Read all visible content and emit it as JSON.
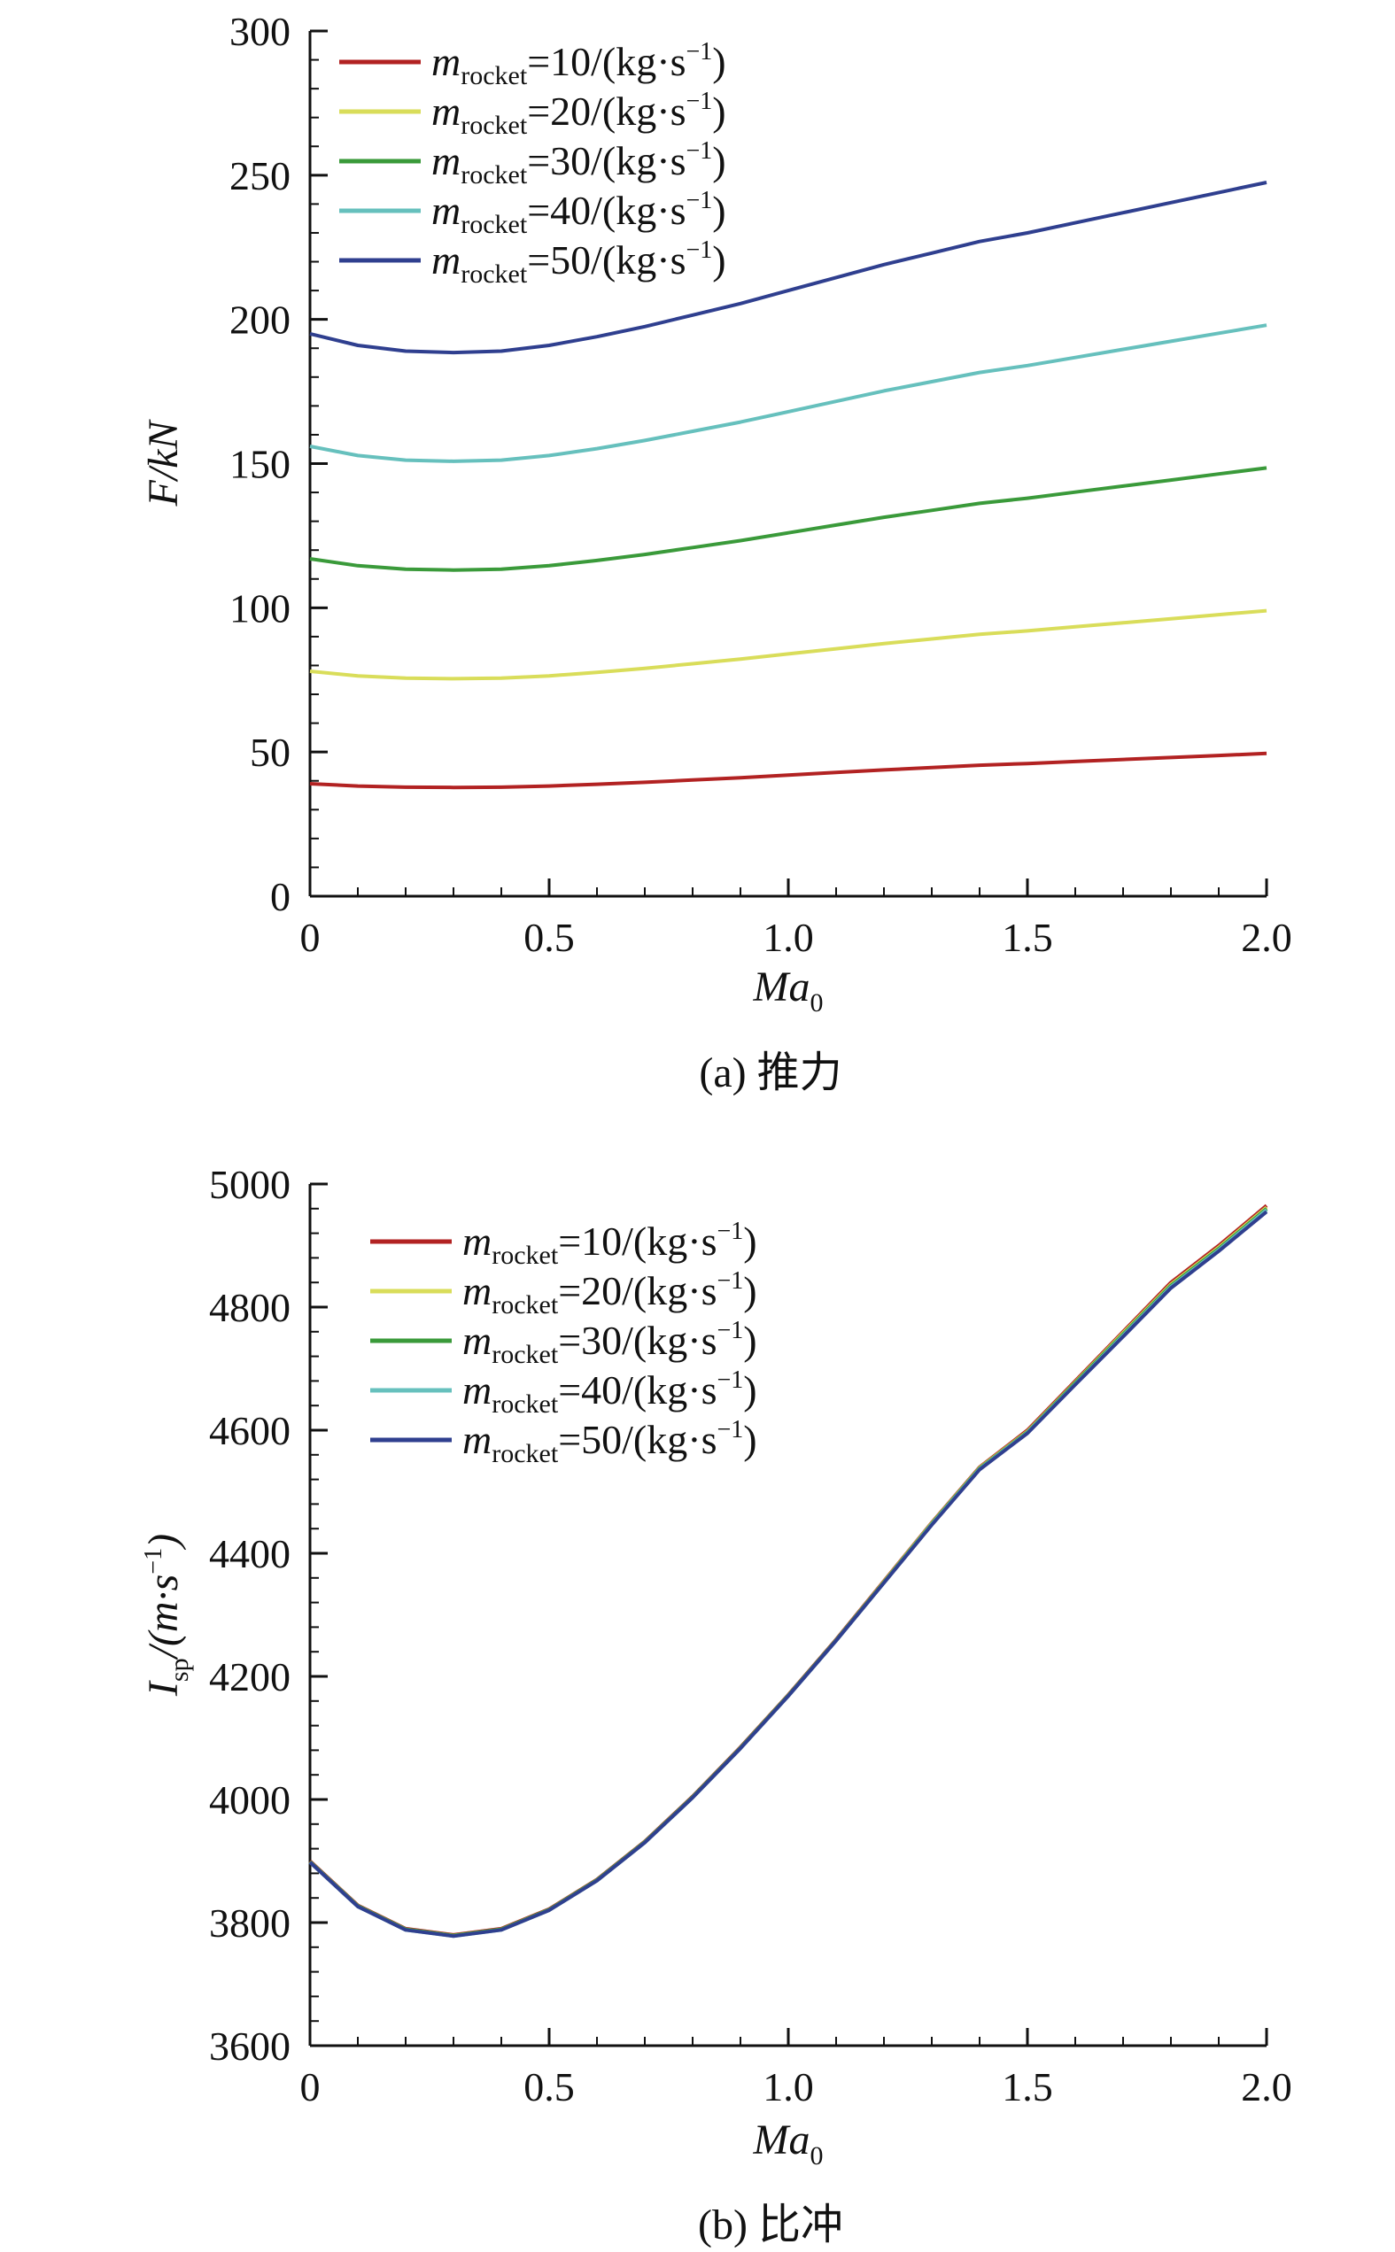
{
  "chart_data": [
    {
      "type": "line",
      "caption": "(a) 推力",
      "xlabel": "Ma",
      "xlabel_sub": "0",
      "ylabel": "F/kN",
      "xlim": [
        0,
        2.0
      ],
      "ylim": [
        0,
        300
      ],
      "xticks": [
        0,
        0.5,
        1.0,
        1.5,
        2.0
      ],
      "xtick_labels": [
        "0",
        "0.5",
        "1.0",
        "1.5",
        "2.0"
      ],
      "yticks": [
        0,
        50,
        100,
        150,
        200,
        250,
        300
      ],
      "ytick_labels": [
        "0",
        "50",
        "100",
        "150",
        "200",
        "250",
        "300"
      ],
      "grid": false,
      "legend_position": "top-left",
      "x": [
        0,
        0.1,
        0.2,
        0.3,
        0.4,
        0.5,
        0.6,
        0.7,
        0.8,
        0.9,
        1.0,
        1.1,
        1.2,
        1.3,
        1.4,
        1.5,
        1.6,
        1.7,
        1.8,
        1.9,
        2.0
      ],
      "series": [
        {
          "name": "m",
          "name_sub": "rocket",
          "name_tail": "=10/(kg·s",
          "name_sup": "−1",
          "name_end": ")",
          "color": "#b22222",
          "values": [
            39,
            38.2,
            37.8,
            37.7,
            37.8,
            38.2,
            38.8,
            39.5,
            40.3,
            41.1,
            42.0,
            42.9,
            43.8,
            44.6,
            45.4,
            46.0,
            46.7,
            47.4,
            48.1,
            48.8,
            49.5
          ]
        },
        {
          "name": "m",
          "name_sub": "rocket",
          "name_tail": "=20/(kg·s",
          "name_sup": "−1",
          "name_end": ")",
          "color": "#d9dd5a",
          "values": [
            78,
            76.4,
            75.6,
            75.4,
            75.6,
            76.4,
            77.6,
            79.0,
            80.6,
            82.2,
            84.0,
            85.8,
            87.6,
            89.2,
            90.8,
            92.0,
            93.4,
            94.8,
            96.2,
            97.6,
            99.0
          ]
        },
        {
          "name": "m",
          "name_sub": "rocket",
          "name_tail": "=30/(kg·s",
          "name_sup": "−1",
          "name_end": ")",
          "color": "#3a9a3a",
          "values": [
            117,
            114.6,
            113.4,
            113.1,
            113.4,
            114.6,
            116.4,
            118.5,
            120.9,
            123.3,
            126.0,
            128.7,
            131.4,
            133.8,
            136.2,
            138.0,
            140.1,
            142.2,
            144.3,
            146.4,
            148.5
          ]
        },
        {
          "name": "m",
          "name_sub": "rocket",
          "name_tail": "=40/(kg·s",
          "name_sup": "−1",
          "name_end": ")",
          "color": "#66c0bd",
          "values": [
            156,
            152.8,
            151.2,
            150.8,
            151.2,
            152.8,
            155.2,
            158.0,
            161.2,
            164.4,
            168.0,
            171.6,
            175.2,
            178.4,
            181.6,
            184.0,
            186.8,
            189.6,
            192.4,
            195.2,
            198.0
          ]
        },
        {
          "name": "m",
          "name_sub": "rocket",
          "name_tail": "=50/(kg·s",
          "name_sup": "−1",
          "name_end": ")",
          "color": "#2f3f8f",
          "values": [
            195,
            191,
            189,
            188.5,
            189,
            191,
            194,
            197.5,
            201.5,
            205.5,
            210,
            214.5,
            219,
            223,
            227,
            230,
            233.5,
            237,
            240.5,
            244,
            247.5
          ]
        }
      ]
    },
    {
      "type": "line",
      "caption": "(b) 比冲",
      "xlabel": "Ma",
      "xlabel_sub": "0",
      "ylabel": "I",
      "ylabel_sub": "sp",
      "ylabel_tail": "/(m·s",
      "ylabel_sup": "−1",
      "ylabel_end": ")",
      "xlim": [
        0,
        2.0
      ],
      "ylim": [
        3600,
        5000
      ],
      "xticks": [
        0,
        0.5,
        1.0,
        1.5,
        2.0
      ],
      "xtick_labels": [
        "0",
        "0.5",
        "1.0",
        "1.5",
        "2.0"
      ],
      "yticks": [
        3600,
        3800,
        4000,
        4200,
        4400,
        4600,
        4800,
        5000
      ],
      "ytick_labels": [
        "3600",
        "3800",
        "4000",
        "4200",
        "4400",
        "4600",
        "4800",
        "5000"
      ],
      "grid": false,
      "legend_position": "top-left",
      "x": [
        0,
        0.1,
        0.2,
        0.3,
        0.4,
        0.5,
        0.6,
        0.7,
        0.8,
        0.9,
        1.0,
        1.1,
        1.2,
        1.3,
        1.4,
        1.5,
        1.6,
        1.7,
        1.8,
        1.9,
        2.0
      ],
      "series": [
        {
          "name": "m",
          "name_sub": "rocket",
          "name_tail": "=10/(kg·s",
          "name_sup": "−1",
          "name_end": ")",
          "color": "#b22222",
          "values": [
            3900,
            3828,
            3790,
            3780,
            3790,
            3822,
            3870,
            3932,
            4005,
            4085,
            4170,
            4260,
            4355,
            4450,
            4540,
            4600,
            4680,
            4760,
            4840,
            4900,
            4965
          ]
        },
        {
          "name": "m",
          "name_sub": "rocket",
          "name_tail": "=20/(kg·s",
          "name_sup": "−1",
          "name_end": ")",
          "color": "#d9dd5a",
          "values": [
            3899,
            3827,
            3789,
            3779,
            3789,
            3821,
            3869,
            3931,
            4004,
            4084,
            4169,
            4259,
            4354,
            4449,
            4539,
            4598,
            4678,
            4758,
            4837,
            4897,
            4962
          ]
        },
        {
          "name": "m",
          "name_sub": "rocket",
          "name_tail": "=30/(kg·s",
          "name_sup": "−1",
          "name_end": ")",
          "color": "#3a9a3a",
          "values": [
            3899,
            3827,
            3789,
            3779,
            3789,
            3821,
            3869,
            3931,
            4004,
            4084,
            4169,
            4259,
            4353,
            4448,
            4538,
            4597,
            4677,
            4756,
            4835,
            4895,
            4960
          ]
        },
        {
          "name": "m",
          "name_sub": "rocket",
          "name_tail": "=40/(kg·s",
          "name_sup": "−1",
          "name_end": ")",
          "color": "#66c0bd",
          "values": [
            3898,
            3826,
            3788,
            3778,
            3788,
            3820,
            3868,
            3930,
            4003,
            4083,
            4168,
            4258,
            4352,
            4447,
            4537,
            4596,
            4675,
            4754,
            4833,
            4893,
            4958
          ]
        },
        {
          "name": "m",
          "name_sub": "rocket",
          "name_tail": "=50/(kg·s",
          "name_sup": "−1",
          "name_end": ")",
          "color": "#2f3f8f",
          "values": [
            3898,
            3826,
            3788,
            3778,
            3788,
            3820,
            3868,
            3930,
            4003,
            4083,
            4168,
            4258,
            4352,
            4446,
            4536,
            4595,
            4674,
            4752,
            4831,
            4891,
            4955
          ]
        }
      ]
    }
  ]
}
